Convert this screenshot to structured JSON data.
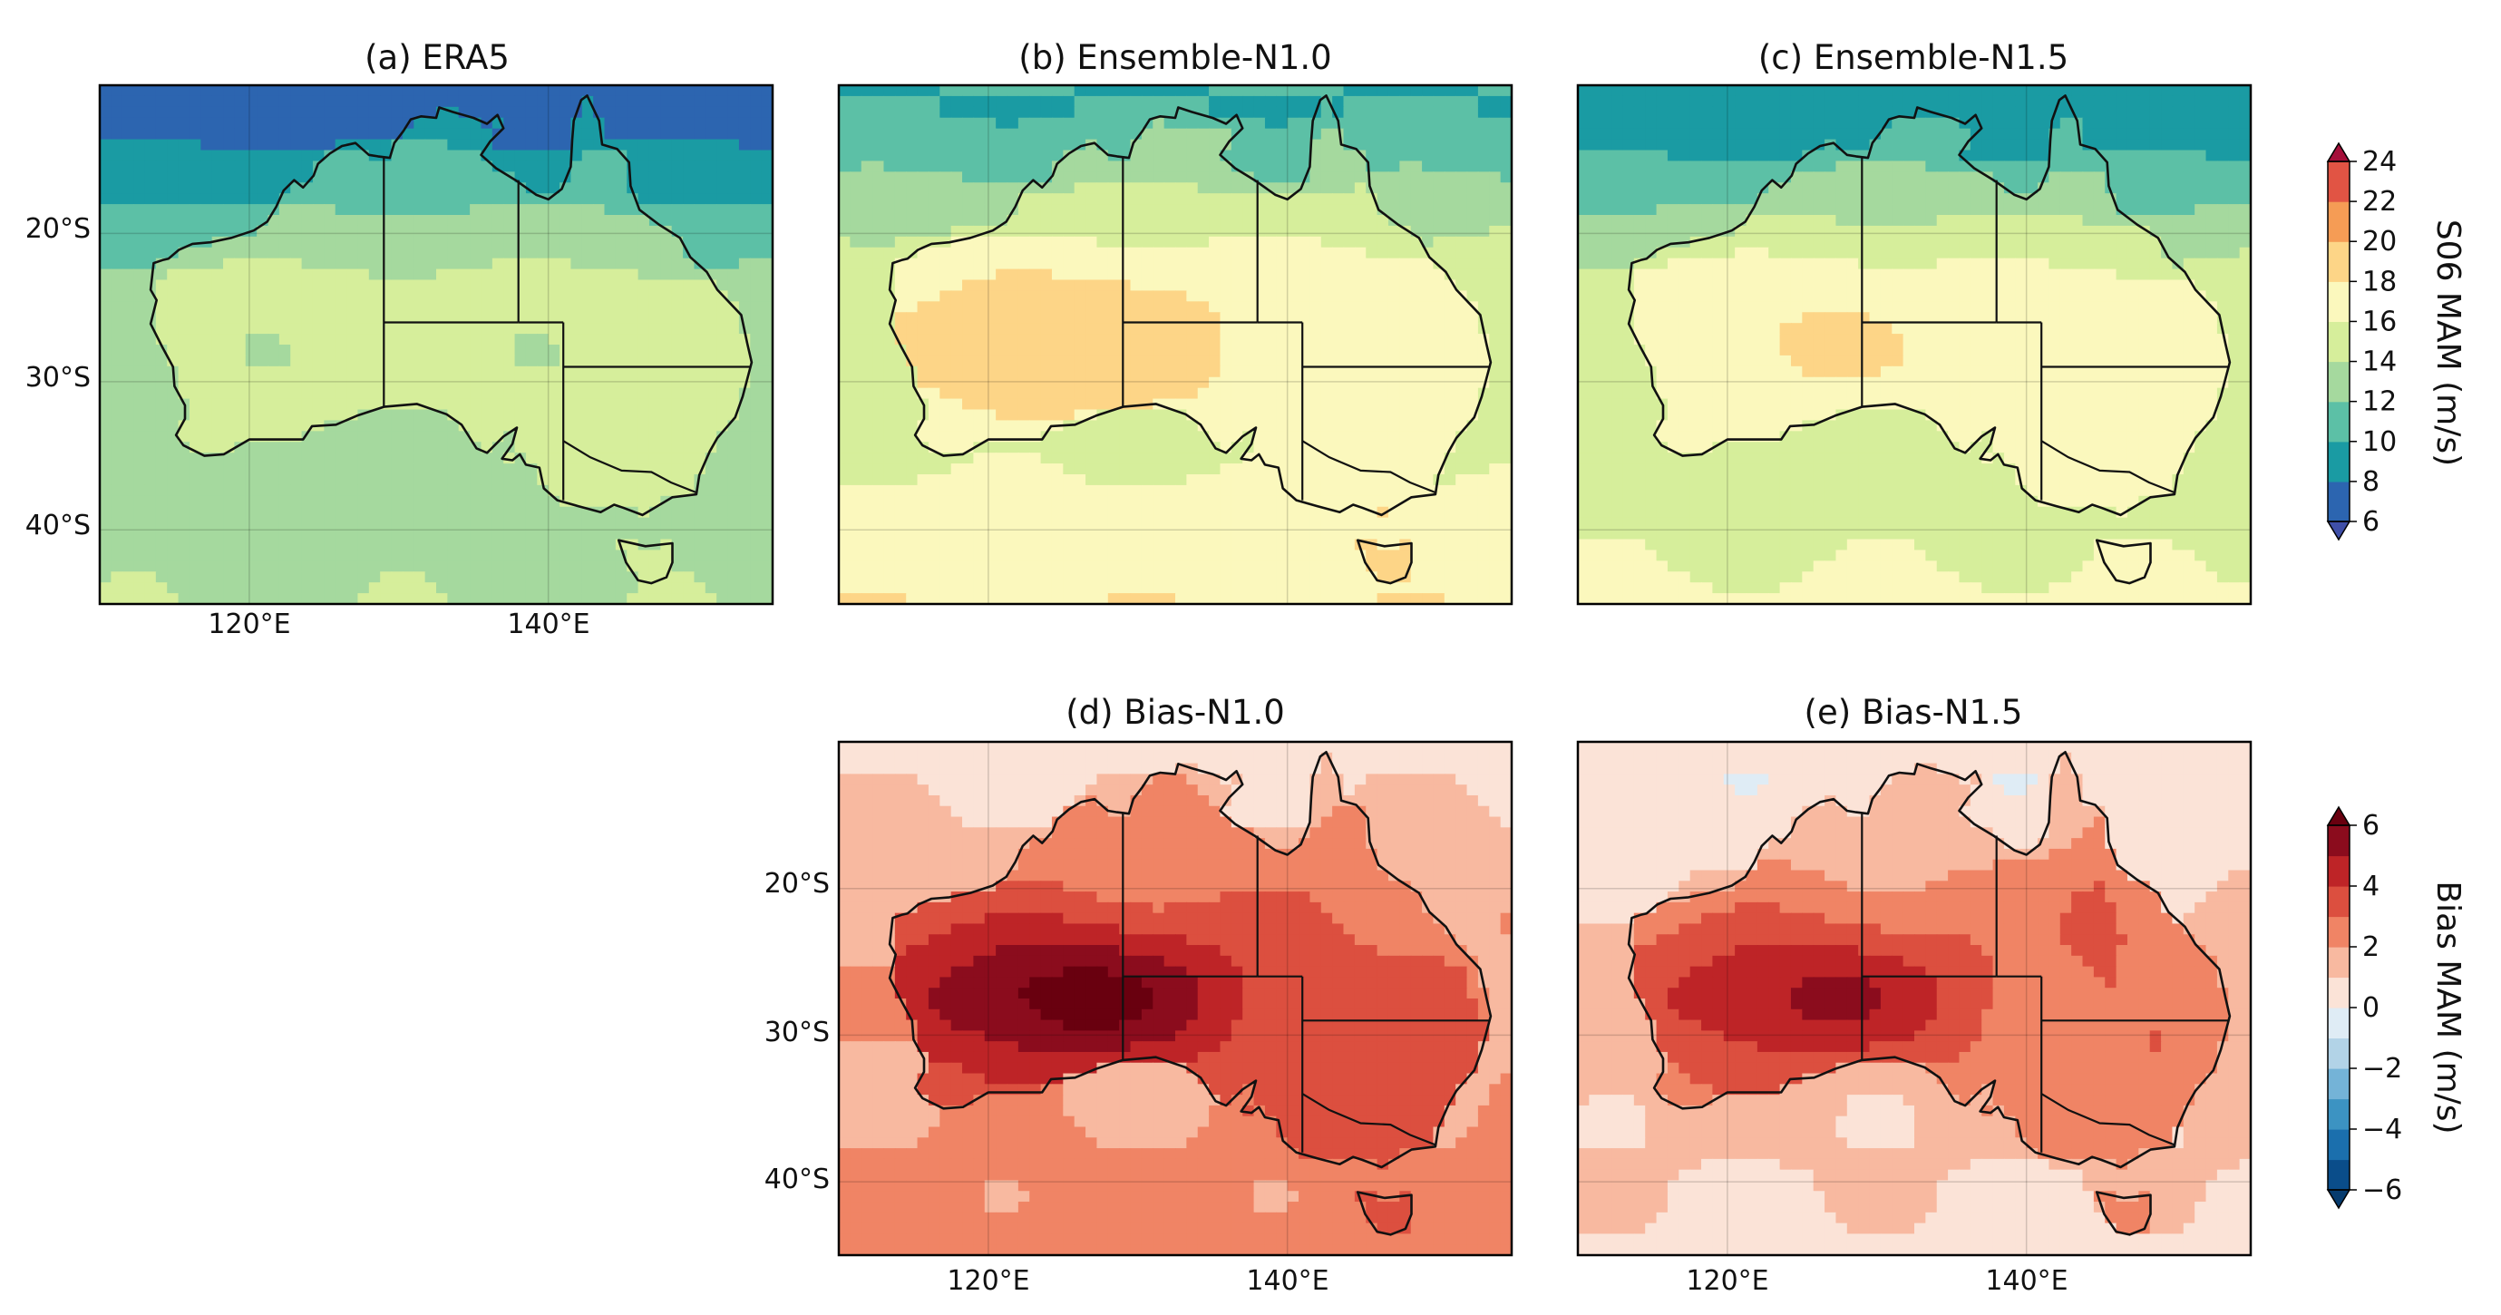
{
  "figure": {
    "extent": {
      "lon": [
        110,
        155
      ],
      "lat": [
        -45,
        -10
      ]
    },
    "lon_ticks": [
      {
        "value": 120,
        "label": "120°E"
      },
      {
        "value": 140,
        "label": "140°E"
      }
    ],
    "lat_ticks": [
      {
        "value": -20,
        "label": "20°S"
      },
      {
        "value": -30,
        "label": "30°S"
      },
      {
        "value": -40,
        "label": "40°S"
      }
    ]
  },
  "panels": [
    {
      "id": "a",
      "title": "(a) ERA5",
      "colormap": "s06",
      "tick_left": true,
      "tick_bottom": true,
      "base": 12.5,
      "north": -5.5,
      "south": 1.5,
      "land": 1.8,
      "interior": 0,
      "topend": 0
    },
    {
      "id": "b",
      "title": "(b) Ensemble-N1.0",
      "colormap": "s06",
      "tick_left": false,
      "tick_bottom": false,
      "base": 15.5,
      "north": -5.5,
      "south": 2.5,
      "land": 1.5,
      "interior": 2.5,
      "topend": 0
    },
    {
      "id": "c",
      "title": "(c) Ensemble-N1.5",
      "colormap": "s06",
      "tick_left": false,
      "tick_bottom": false,
      "base": 14.8,
      "north": -6.5,
      "south": 1.5,
      "land": 1.5,
      "interior": 2.0,
      "topend": 0
    },
    {
      "id": "d",
      "title": "(d) Bias-N1.0",
      "colormap": "bias",
      "tick_left": true,
      "tick_bottom": true,
      "base": 1.9,
      "north": -1.1,
      "south": 0.6,
      "land": 1.0,
      "interior": 3.6,
      "topend": 0
    },
    {
      "id": "e",
      "title": "(e) Bias-N1.5",
      "colormap": "bias",
      "tick_left": false,
      "tick_bottom": true,
      "base": 1.3,
      "north": -1.1,
      "south": -0.6,
      "land": 1.0,
      "interior": 2.9,
      "topend": 1.2
    }
  ],
  "colorbars": {
    "s06": {
      "label": "S06 MAM (m/s)",
      "levels": [
        6,
        8,
        10,
        12,
        14,
        16,
        18,
        20,
        22,
        24
      ],
      "tick_labels": [
        "6",
        "8",
        "10",
        "12",
        "14",
        "16",
        "18",
        "20",
        "22",
        "24"
      ],
      "colors": [
        "#2c65b0",
        "#1a9ba3",
        "#5cc0a6",
        "#a5d99e",
        "#d6ee9b",
        "#fbf8bd",
        "#fdd587",
        "#f59c55",
        "#e15444",
        "#bf1641"
      ],
      "under_color": "#3f4fa8",
      "over_color": "#a50f3a"
    },
    "bias": {
      "label": "Bias MAM (m/s)",
      "levels": [
        -6,
        -5,
        -4,
        -3,
        -2,
        -1,
        0,
        1,
        2,
        3,
        4,
        5,
        6
      ],
      "tick_labels": [
        "−6",
        "−4",
        "−2",
        "0",
        "2",
        "4",
        "6"
      ],
      "colors": [
        "#0a4d8a",
        "#1b6fad",
        "#3c93c2",
        "#74b3d7",
        "#b2d3e7",
        "#dfecf5",
        "#fbe3d7",
        "#f8b9a0",
        "#f08465",
        "#dc4f3f",
        "#be2427",
        "#8b0c1d"
      ],
      "under_color": "#063b6e",
      "over_color": "#69000f"
    }
  }
}
